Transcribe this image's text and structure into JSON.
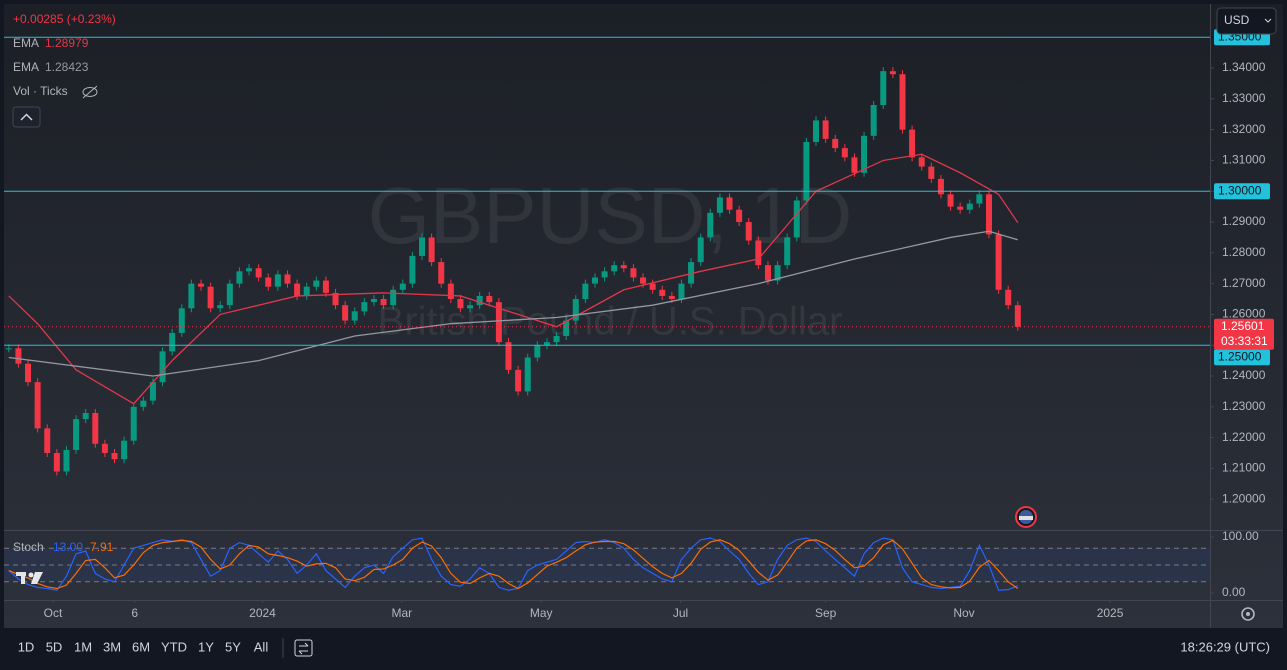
{
  "header": {
    "change": "+0.00285 (+0.23%)",
    "volume": "Vol · Ticks",
    "currency": "USD"
  },
  "watermark": {
    "symbol": "GBPUSD, 1D",
    "description": "British Pound / U.S. Dollar"
  },
  "chart_data": [
    {
      "type": "candlestick",
      "up_color": "#089981",
      "down_color": "#f23645",
      "values": [
        1.249,
        1.244,
        1.238,
        1.223,
        1.215,
        1.209,
        1.216,
        1.226,
        1.228,
        1.218,
        1.215,
        1.213,
        1.219,
        1.23,
        1.232,
        1.238,
        1.248,
        1.254,
        1.262,
        1.27,
        1.269,
        1.262,
        1.263,
        1.27,
        1.274,
        1.275,
        1.272,
        1.269,
        1.273,
        1.27,
        1.266,
        1.269,
        1.271,
        1.267,
        1.263,
        1.258,
        1.261,
        1.264,
        1.265,
        1.263,
        1.268,
        1.27,
        1.279,
        1.285,
        1.277,
        1.27,
        1.265,
        1.262,
        1.263,
        1.266,
        1.264,
        1.251,
        1.242,
        1.235,
        1.246,
        1.25,
        1.251,
        1.253,
        1.258,
        1.265,
        1.27,
        1.272,
        1.274,
        1.276,
        1.275,
        1.272,
        1.27,
        1.268,
        1.266,
        1.265,
        1.27,
        1.277,
        1.285,
        1.293,
        1.298,
        1.294,
        1.29,
        1.284,
        1.276,
        1.271,
        1.276,
        1.285,
        1.297,
        1.316,
        1.323,
        1.317,
        1.314,
        1.311,
        1.306,
        1.318,
        1.328,
        1.339,
        1.338,
        1.32,
        1.311,
        1.308,
        1.304,
        1.299,
        1.295,
        1.294,
        1.296,
        1.299,
        1.286,
        1.268,
        1.263,
        1.25601
      ],
      "series": [
        {
          "name": "EMA",
          "color": "#e0384a",
          "x": [
            0,
            3,
            7,
            13,
            17,
            22,
            30,
            39,
            47,
            53,
            57,
            64,
            72,
            78,
            84,
            91,
            95,
            99,
            103,
            105
          ],
          "values": [
            1.266,
            1.257,
            1.242,
            1.231,
            1.245,
            1.26,
            1.266,
            1.267,
            1.266,
            1.26,
            1.256,
            1.268,
            1.274,
            1.278,
            1.3,
            1.31,
            1.312,
            1.306,
            1.299,
            1.28979
          ]
        },
        {
          "name": "EMA",
          "color": "#9598a1",
          "x": [
            0,
            15,
            26,
            36,
            46,
            57,
            67,
            78,
            88,
            98,
            102,
            105
          ],
          "values": [
            1.246,
            1.24,
            1.245,
            1.253,
            1.257,
            1.259,
            1.263,
            1.27,
            1.278,
            1.285,
            1.287,
            1.28423
          ]
        }
      ],
      "levels": [
        {
          "value": 1.35,
          "label": "1.35000"
        },
        {
          "value": 1.3,
          "label": "1.30000"
        },
        {
          "value": 1.25,
          "label": "1.25000"
        }
      ],
      "level_color": "#22c1dc",
      "countdown": "03:33:31",
      "xlim": [
        -0.5,
        125
      ],
      "xticks": [
        {
          "value": 4.6,
          "label": "Oct"
        },
        {
          "value": 13.1,
          "label": "6"
        },
        {
          "value": 26.4,
          "label": "2024"
        },
        {
          "value": 40.9,
          "label": "Mar"
        },
        {
          "value": 55.4,
          "label": "May"
        },
        {
          "value": 69.9,
          "label": "Jul"
        },
        {
          "value": 85.0,
          "label": "Sep"
        },
        {
          "value": 99.4,
          "label": "Nov"
        },
        {
          "value": 114.6,
          "label": "2025"
        }
      ],
      "ylim": [
        1.19,
        1.3608
      ],
      "yticks": [
        {
          "value": 1.2,
          "label": "1.20000"
        },
        {
          "value": 1.21,
          "label": "1.21000"
        },
        {
          "value": 1.22,
          "label": "1.22000"
        },
        {
          "value": 1.23,
          "label": "1.23000"
        },
        {
          "value": 1.24,
          "label": "1.24000"
        },
        {
          "value": 1.25,
          "label": "1.25000"
        },
        {
          "value": 1.26,
          "label": "1.26000"
        },
        {
          "value": 1.27,
          "label": "1.27000"
        },
        {
          "value": 1.28,
          "label": "1.28000"
        },
        {
          "value": 1.29,
          "label": "1.29000"
        },
        {
          "value": 1.3,
          "label": "1.30000"
        },
        {
          "value": 1.31,
          "label": "1.31000"
        },
        {
          "value": 1.32,
          "label": "1.32000"
        },
        {
          "value": 1.33,
          "label": "1.33000"
        },
        {
          "value": 1.34,
          "label": "1.34000"
        }
      ]
    },
    {
      "type": "line",
      "title": "Stoch",
      "series": [
        {
          "color": "#2962ff",
          "last": {
            "value": 13,
            "label": "13.00"
          },
          "values": [
            40,
            25,
            15,
            10,
            8,
            5,
            30,
            70,
            75,
            35,
            25,
            20,
            50,
            80,
            85,
            90,
            95,
            92,
            95,
            90,
            60,
            30,
            40,
            80,
            90,
            85,
            70,
            55,
            75,
            60,
            35,
            50,
            70,
            40,
            25,
            10,
            30,
            45,
            50,
            35,
            65,
            80,
            95,
            98,
            60,
            30,
            15,
            12,
            25,
            45,
            35,
            10,
            5,
            8,
            40,
            50,
            55,
            60,
            75,
            90,
            92,
            90,
            95,
            90,
            80,
            60,
            45,
            35,
            25,
            20,
            60,
            80,
            95,
            98,
            92,
            75,
            60,
            35,
            15,
            20,
            60,
            85,
            95,
            98,
            92,
            75,
            60,
            45,
            30,
            70,
            90,
            98,
            95,
            45,
            20,
            15,
            10,
            8,
            10,
            12,
            40,
            85,
            50,
            5,
            6,
            13
          ]
        },
        {
          "color": "#ff6d00",
          "last": 7.91,
          "values": [
            40,
            33,
            27,
            17,
            11,
            8,
            14,
            35,
            58,
            60,
            45,
            27,
            32,
            50,
            72,
            85,
            90,
            92,
            94,
            92,
            82,
            60,
            43,
            50,
            70,
            85,
            82,
            70,
            67,
            63,
            57,
            48,
            52,
            53,
            45,
            25,
            22,
            28,
            42,
            43,
            50,
            60,
            80,
            91,
            84,
            63,
            35,
            19,
            17,
            27,
            35,
            30,
            17,
            8,
            18,
            33,
            48,
            55,
            63,
            75,
            86,
            91,
            92,
            92,
            88,
            77,
            62,
            47,
            35,
            27,
            35,
            53,
            78,
            91,
            95,
            88,
            76,
            57,
            37,
            23,
            32,
            55,
            80,
            93,
            95,
            88,
            76,
            60,
            45,
            48,
            63,
            86,
            94,
            79,
            53,
            27,
            15,
            11,
            9,
            10,
            21,
            46,
            58,
            40,
            20,
            7.91
          ]
        }
      ],
      "hlines": [
        80,
        50,
        20
      ],
      "ylim": [
        -12.5,
        110.7
      ],
      "yticks": [
        {
          "value": 100,
          "label": "100.00"
        },
        {
          "value": 0,
          "label": "0.00"
        }
      ]
    }
  ],
  "toolbar": {
    "ranges": [
      "1D",
      "5D",
      "1M",
      "3M",
      "6M",
      "YTD",
      "1Y",
      "5Y",
      "All"
    ],
    "clock": "18:26:29 (UTC)"
  }
}
